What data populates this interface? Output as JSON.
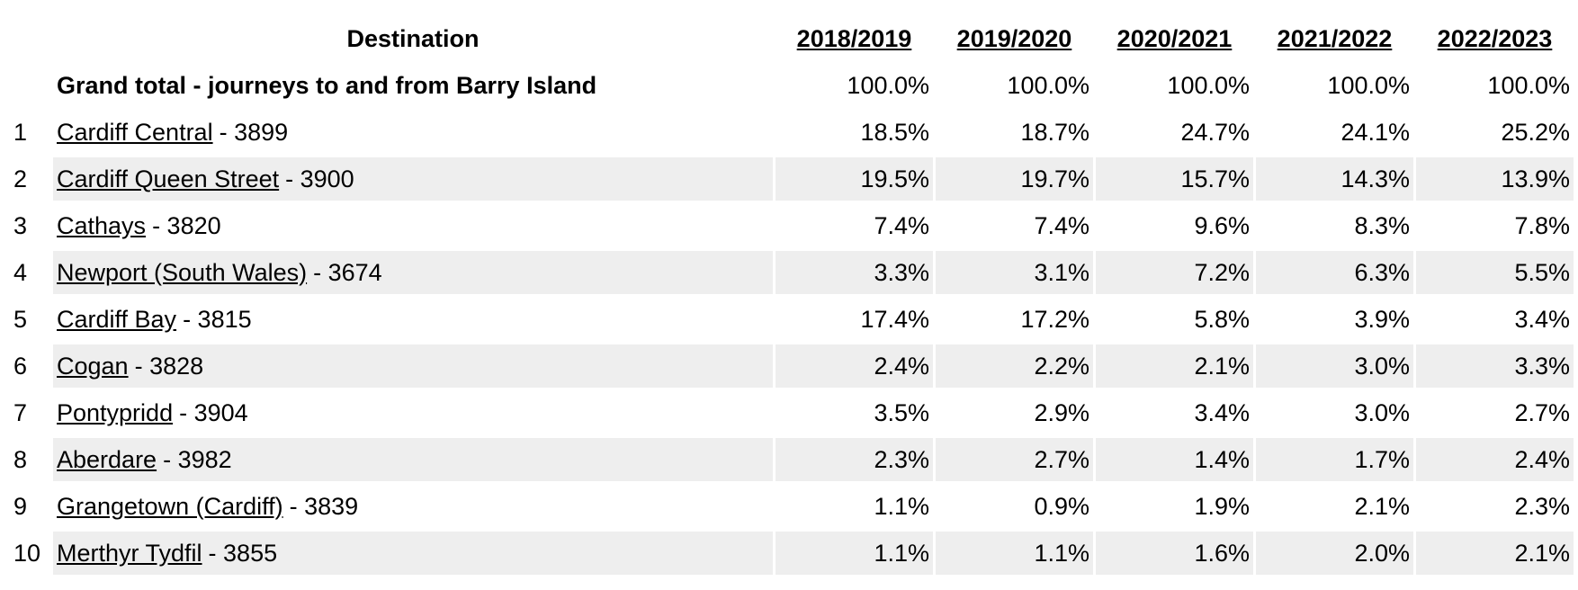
{
  "table": {
    "header": {
      "destination": "Destination",
      "years": [
        "2018/2019",
        "2019/2020",
        "2020/2021",
        "2021/2022",
        "2022/2023"
      ]
    },
    "grand_total": {
      "label": "Grand total - journeys to and from Barry Island",
      "values": [
        "100.0%",
        "100.0%",
        "100.0%",
        "100.0%",
        "100.0%"
      ]
    },
    "rows": [
      {
        "rank": "1",
        "name": "Cardiff Central",
        "suffix": "- 3899",
        "values": [
          "18.5%",
          "18.7%",
          "24.7%",
          "24.1%",
          "25.2%"
        ]
      },
      {
        "rank": "2",
        "name": "Cardiff Queen Street",
        "suffix": "- 3900",
        "values": [
          "19.5%",
          "19.7%",
          "15.7%",
          "14.3%",
          "13.9%"
        ]
      },
      {
        "rank": "3",
        "name": "Cathays",
        "suffix": "- 3820",
        "values": [
          "7.4%",
          "7.4%",
          "9.6%",
          "8.3%",
          "7.8%"
        ]
      },
      {
        "rank": "4",
        "name": "Newport (South Wales)",
        "suffix": "- 3674",
        "values": [
          "3.3%",
          "3.1%",
          "7.2%",
          "6.3%",
          "5.5%"
        ]
      },
      {
        "rank": "5",
        "name": "Cardiff Bay",
        "suffix": "- 3815",
        "values": [
          "17.4%",
          "17.2%",
          "5.8%",
          "3.9%",
          "3.4%"
        ]
      },
      {
        "rank": "6",
        "name": "Cogan",
        "suffix": "- 3828",
        "values": [
          "2.4%",
          "2.2%",
          "2.1%",
          "3.0%",
          "3.3%"
        ]
      },
      {
        "rank": "7",
        "name": "Pontypridd",
        "suffix": "- 3904",
        "values": [
          "3.5%",
          "2.9%",
          "3.4%",
          "3.0%",
          "2.7%"
        ]
      },
      {
        "rank": "8",
        "name": "Aberdare",
        "suffix": "- 3982",
        "values": [
          "2.3%",
          "2.7%",
          "1.4%",
          "1.7%",
          "2.4%"
        ]
      },
      {
        "rank": "9",
        "name": "Grangetown (Cardiff)",
        "suffix": "- 3839",
        "values": [
          "1.1%",
          "0.9%",
          "1.9%",
          "2.1%",
          "2.3%"
        ]
      },
      {
        "rank": "10",
        "name": "Merthyr Tydfil",
        "suffix": "- 3855",
        "values": [
          "1.1%",
          "1.1%",
          "1.6%",
          "2.0%",
          "2.1%"
        ]
      }
    ]
  }
}
